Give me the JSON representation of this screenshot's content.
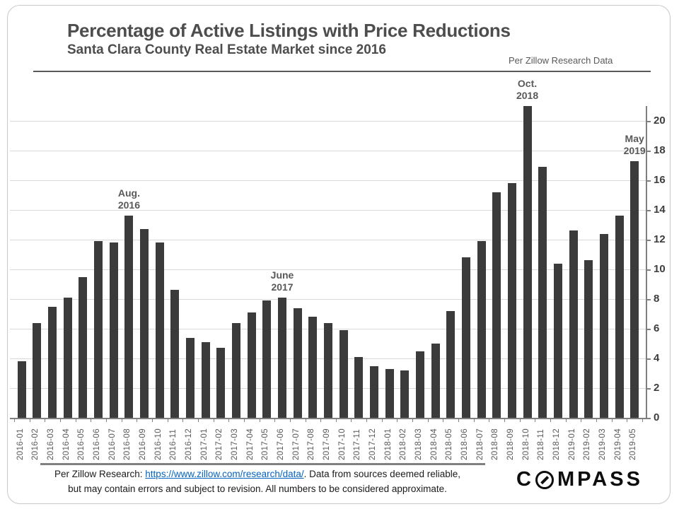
{
  "header": {
    "title": "Percentage of Active Listings with Price Reductions",
    "subtitle": "Santa Clara County Real Estate Market since 2016",
    "source_note": "Per Zillow Research Data"
  },
  "chart_data": {
    "type": "bar",
    "title": "Percentage of Active Listings with Price Reductions",
    "subtitle": "Santa Clara County Real Estate Market since 2016",
    "source": "Per Zillow Research Data",
    "categories": [
      "2016-01",
      "2016-02",
      "2016-03",
      "2016-04",
      "2016-05",
      "2016-06",
      "2016-07",
      "2016-08",
      "2016-09",
      "2016-10",
      "2016-11",
      "2016-12",
      "2017-01",
      "2017-02",
      "2017-03",
      "2017-04",
      "2017-05",
      "2017-06",
      "2017-07",
      "2017-08",
      "2017-09",
      "2017-10",
      "2017-11",
      "2017-12",
      "2018-01",
      "2018-02",
      "2018-03",
      "2018-04",
      "2018-05",
      "2018-06",
      "2018-07",
      "2018-08",
      "2018-09",
      "2018-10",
      "2018-11",
      "2018-12",
      "2019-01",
      "2019-02",
      "2019-03",
      "2019-04",
      "2019-05"
    ],
    "values": [
      3.8,
      6.4,
      7.5,
      8.1,
      9.5,
      11.9,
      11.8,
      13.6,
      12.7,
      11.8,
      8.6,
      5.4,
      5.1,
      4.7,
      6.4,
      7.1,
      7.9,
      8.1,
      7.4,
      6.8,
      6.4,
      5.9,
      4.1,
      3.5,
      3.3,
      3.2,
      4.5,
      5.0,
      7.2,
      10.8,
      11.9,
      15.2,
      15.8,
      21.0,
      16.9,
      10.4,
      12.6,
      10.6,
      12.4,
      13.6,
      17.3
    ],
    "xlabel": "",
    "ylabel": "",
    "ylim": [
      0,
      21
    ],
    "yticks": [
      0,
      2,
      4,
      6,
      8,
      10,
      12,
      14,
      16,
      18,
      20
    ],
    "axis_side": "right",
    "grid": "horizontal",
    "bar_color": "#3b3b3b",
    "annotations": [
      {
        "index": 7,
        "lines": [
          "Aug.",
          "2016"
        ]
      },
      {
        "index": 17,
        "lines": [
          "June",
          "2017"
        ]
      },
      {
        "index": 33,
        "lines": [
          "Oct.",
          "2018"
        ]
      },
      {
        "index": 40,
        "lines": [
          "May",
          "2019"
        ]
      }
    ]
  },
  "footer": {
    "prefix": "Per Zillow Research: ",
    "link_text": "https://www.zillow.com/research/data/",
    "after_link": ".  Data from sources  deemed reliable,",
    "line2": "but may contain errors and subject to revision.  All numbers to be considered approximate.",
    "logo_prefix": "C",
    "logo_suffix": "MPASS"
  }
}
